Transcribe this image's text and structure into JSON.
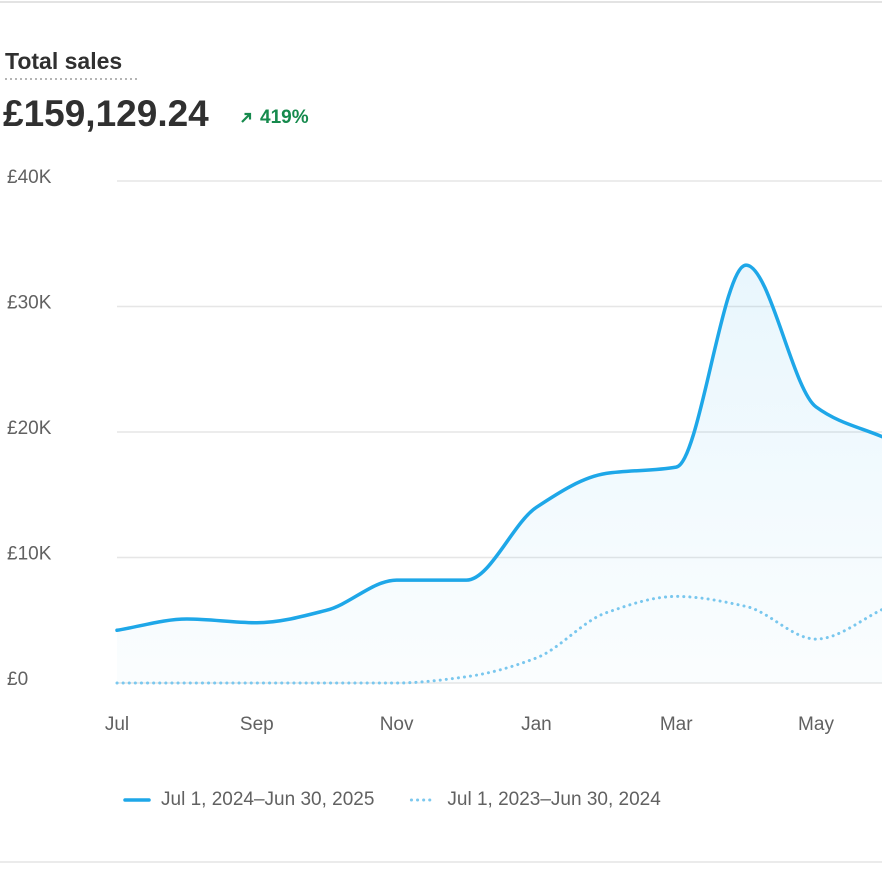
{
  "header": {
    "title": "Total sales",
    "total": "£159,129.24",
    "change": "419%"
  },
  "chart_data": {
    "type": "line",
    "categories": [
      "Jul",
      null,
      "Sep",
      null,
      "Nov",
      null,
      "Jan",
      null,
      "Mar",
      null,
      "May",
      null
    ],
    "series": [
      {
        "name": "Jul 1, 2024–Jun 30, 2025",
        "color": "#1ea7e8",
        "style": "solid",
        "area": true,
        "values": [
          4200,
          5100,
          4800,
          5800,
          8200,
          8200,
          14000,
          16700,
          17200,
          33300,
          22000,
          19500
        ]
      },
      {
        "name": "Jul 1, 2023–Jun 30, 2024",
        "color": "#7cc8ee",
        "style": "dotted",
        "area": false,
        "values": [
          0,
          0,
          0,
          0,
          0,
          500,
          2000,
          5600,
          6900,
          6100,
          3500,
          6000
        ]
      }
    ],
    "ylim": [
      0,
      40000
    ],
    "yticks": [
      {
        "value": 0,
        "label": "£0"
      },
      {
        "value": 10000,
        "label": "£10K"
      },
      {
        "value": 20000,
        "label": "£20K"
      },
      {
        "value": 30000,
        "label": "£30K"
      },
      {
        "value": 40000,
        "label": "£40K"
      }
    ],
    "grid": true
  }
}
